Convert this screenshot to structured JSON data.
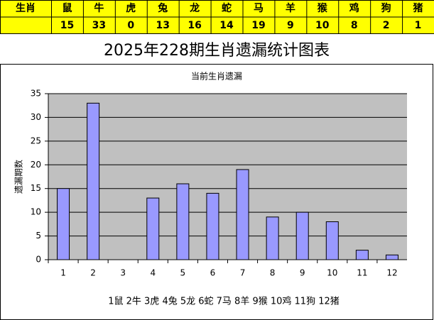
{
  "table": {
    "header": [
      "生肖",
      "鼠",
      "牛",
      "虎",
      "兔",
      "龙",
      "蛇",
      "马",
      "羊",
      "猴",
      "鸡",
      "狗",
      "猪"
    ]
  },
  "title": "2025年228期生肖遗漏统计图表",
  "chart_data": {
    "type": "bar",
    "title": "当前生肖遗漏",
    "y_label": "遗漏期数",
    "x_label": "1鼠 2牛 3虎 4兔 5龙 6蛇 7马 8羊 9猴 10鸡 11狗 12猪",
    "categories": [
      "1",
      "2",
      "3",
      "4",
      "5",
      "6",
      "7",
      "8",
      "9",
      "10",
      "11",
      "12"
    ],
    "values": [
      15,
      33,
      0,
      13,
      16,
      14,
      19,
      9,
      10,
      8,
      2,
      1
    ],
    "color": "#9999ff",
    "ylim": [
      0,
      35
    ],
    "yticks": [
      0,
      5,
      10,
      15,
      20,
      25,
      30,
      35
    ],
    "grid": true
  }
}
